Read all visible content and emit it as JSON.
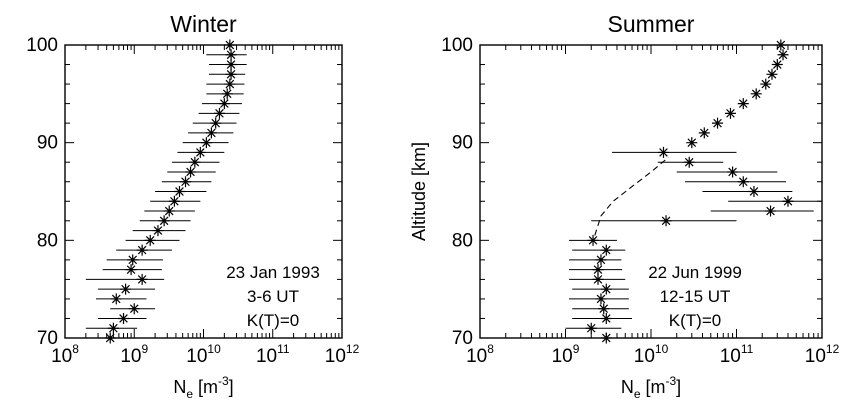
{
  "chart_data": [
    {
      "type": "scatter",
      "title": "Winter",
      "xlabel": {
        "base": "N",
        "sub": "e",
        "unit_pre": "[m",
        "unit_sup": "-3",
        "unit_post": "]"
      },
      "ylabel": "",
      "x_scale": "log",
      "xlim": [
        100000000.0,
        1000000000000.0
      ],
      "ylim": [
        70,
        100
      ],
      "x_ticks": [
        {
          "base": "10",
          "exp": "8"
        },
        {
          "base": "10",
          "exp": "9"
        },
        {
          "base": "10",
          "exp": "10"
        },
        {
          "base": "10",
          "exp": "11"
        },
        {
          "base": "10",
          "exp": "12"
        }
      ],
      "y_ticks": [
        "70",
        "80",
        "90",
        "100"
      ],
      "annotation": [
        "23 Jan 1993",
        "3-6 UT",
        "K(T)=0"
      ],
      "points": [
        {
          "y": 100.0,
          "x": 24000000000.0,
          "xmin": 10000000000.0,
          "xmax": 44000000000.0
        },
        {
          "y": 99.0,
          "x": 25000000000.0,
          "xmin": 11000000000.0,
          "xmax": 42000000000.0
        },
        {
          "y": 98.0,
          "x": 25000000000.0,
          "xmin": 12000000000.0,
          "xmax": 42000000000.0
        },
        {
          "y": 97.0,
          "x": 25000000000.0,
          "xmin": 12000000000.0,
          "xmax": 40000000000.0
        },
        {
          "y": 96.0,
          "x": 24000000000.0,
          "xmin": 11000000000.0,
          "xmax": 39000000000.0
        },
        {
          "y": 95.0,
          "x": 22000000000.0,
          "xmin": 11000000000.0,
          "xmax": 38000000000.0
        },
        {
          "y": 94.0,
          "x": 20000000000.0,
          "xmin": 9500000000.0,
          "xmax": 36000000000.0
        },
        {
          "y": 93.0,
          "x": 17000000000.0,
          "xmin": 8500000000.0,
          "xmax": 33000000000.0
        },
        {
          "y": 92.0,
          "x": 15000000000.0,
          "xmin": 7000000000.0,
          "xmax": 30000000000.0
        },
        {
          "y": 91.0,
          "x": 13000000000.0,
          "xmin": 6000000000.0,
          "xmax": 27000000000.0
        },
        {
          "y": 90.0,
          "x": 11000000000.0,
          "xmin": 5000000000.0,
          "xmax": 23000000000.0
        },
        {
          "y": 89.0,
          "x": 9000000000.0,
          "xmin": 4200000000.0,
          "xmax": 20000000000.0
        },
        {
          "y": 88.0,
          "x": 7500000000.0,
          "xmin": 3500000000.0,
          "xmax": 17000000000.0
        },
        {
          "y": 87.0,
          "x": 6500000000.0,
          "xmin": 3000000000.0,
          "xmax": 15000000000.0
        },
        {
          "y": 86.0,
          "x": 5500000000.0,
          "xmin": 2500000000.0,
          "xmax": 13000000000.0
        },
        {
          "y": 85.0,
          "x": 4500000000.0,
          "xmin": 2000000000.0,
          "xmax": 11000000000.0
        },
        {
          "y": 84.0,
          "x": 3800000000.0,
          "xmin": 1700000000.0,
          "xmax": 9000000000.0
        },
        {
          "y": 83.0,
          "x": 3200000000.0,
          "xmin": 1400000000.0,
          "xmax": 7500000000.0
        },
        {
          "y": 82.0,
          "x": 2700000000.0,
          "xmin": 1200000000.0,
          "xmax": 6500000000.0
        },
        {
          "y": 81.0,
          "x": 2200000000.0,
          "xmin": 950000000.0,
          "xmax": 5500000000.0
        },
        {
          "y": 80.0,
          "x": 1700000000.0,
          "xmin": 750000000.0,
          "xmax": 4500000000.0
        },
        {
          "y": 79.0,
          "x": 1300000000.0,
          "xmin": 550000000.0,
          "xmax": 3500000000.0
        },
        {
          "y": 78.0,
          "x": 950000000.0,
          "xmin": 400000000.0,
          "xmax": 2600000000.0
        },
        {
          "y": 77.0,
          "x": 900000000.0,
          "xmin": 350000000.0,
          "xmax": 2500000000.0
        },
        {
          "y": 76.0,
          "x": 1300000000.0,
          "xmin": 200000000.0,
          "xmax": 2700000000.0
        },
        {
          "y": 75.0,
          "x": 750000000.0,
          "xmin": 300000000.0,
          "xmax": 2000000000.0
        },
        {
          "y": 74.0,
          "x": 550000000.0,
          "xmin": 280000000.0,
          "xmax": 1500000000.0
        },
        {
          "y": 73.0,
          "x": 1000000000.0,
          "xmin": 450000000.0,
          "xmax": 2000000000.0
        },
        {
          "y": 72.0,
          "x": 700000000.0,
          "xmin": 300000000.0,
          "xmax": 1500000000.0
        },
        {
          "y": 71.0,
          "x": 500000000.0,
          "xmin": 200000000.0,
          "xmax": 1100000000.0
        },
        {
          "y": 70.0,
          "x": 450000000.0,
          "xmin": 200000000.0,
          "xmax": 900000000.0
        }
      ],
      "dashed_line": []
    },
    {
      "type": "scatter",
      "title": "Summer",
      "xlabel": {
        "base": "N",
        "sub": "e",
        "unit_pre": "[m",
        "unit_sup": "-3",
        "unit_post": "]"
      },
      "ylabel": "Altitude  [km]",
      "x_scale": "log",
      "xlim": [
        100000000.0,
        1000000000000.0
      ],
      "ylim": [
        70,
        100
      ],
      "x_ticks": [
        {
          "base": "10",
          "exp": "8"
        },
        {
          "base": "10",
          "exp": "9"
        },
        {
          "base": "10",
          "exp": "10"
        },
        {
          "base": "10",
          "exp": "11"
        },
        {
          "base": "10",
          "exp": "12"
        }
      ],
      "y_ticks": [
        "70",
        "80",
        "90",
        "100"
      ],
      "annotation": [
        "22 Jun 1999",
        "12-15 UT",
        "K(T)=0"
      ],
      "points": [
        {
          "y": 100.0,
          "x": 330000000000.0
        },
        {
          "y": 99.0,
          "x": 350000000000.0
        },
        {
          "y": 98.0,
          "x": 300000000000.0
        },
        {
          "y": 97.0,
          "x": 260000000000.0
        },
        {
          "y": 96.0,
          "x": 220000000000.0
        },
        {
          "y": 95.0,
          "x": 170000000000.0
        },
        {
          "y": 94.0,
          "x": 120000000000.0
        },
        {
          "y": 93.0,
          "x": 85000000000.0
        },
        {
          "y": 92.0,
          "x": 60000000000.0
        },
        {
          "y": 91.0,
          "x": 42000000000.0
        },
        {
          "y": 90.0,
          "x": 30000000000.0
        },
        {
          "y": 89.0,
          "x": 14000000000.0,
          "xmin": 3500000000.0,
          "xmax": 100000000000.0
        },
        {
          "y": 88.0,
          "x": 28000000000.0,
          "xmin": 12000000000.0,
          "xmax": 70000000000.0
        },
        {
          "y": 87.0,
          "x": 90000000000.0,
          "xmin": 20000000000.0,
          "xmax": 300000000000.0
        },
        {
          "y": 86.0,
          "x": 120000000000.0,
          "xmin": 25000000000.0,
          "xmax": 380000000000.0
        },
        {
          "y": 85.0,
          "x": 160000000000.0,
          "xmin": 40000000000.0,
          "xmax": 450000000000.0
        },
        {
          "y": 84.0,
          "x": 400000000000.0,
          "xmin": 80000000000.0,
          "xmax": 1000000000000.0
        },
        {
          "y": 83.0,
          "x": 250000000000.0,
          "xmin": 50000000000.0,
          "xmax": 800000000000.0
        },
        {
          "y": 82.0,
          "x": 15000000000.0,
          "xmin": 2000000000.0,
          "xmax": 100000000000.0
        },
        {
          "y": 80.0,
          "x": 2100000000.0,
          "xmin": 1100000000.0,
          "xmax": 4000000000.0
        },
        {
          "y": 79.0,
          "x": 3000000000.0,
          "xmin": 1200000000.0,
          "xmax": 5000000000.0
        },
        {
          "y": 78.0,
          "x": 2600000000.0,
          "xmin": 1100000000.0,
          "xmax": 4500000000.0
        },
        {
          "y": 77.0,
          "x": 2400000000.0,
          "xmin": 1100000000.0,
          "xmax": 4600000000.0
        },
        {
          "y": 76.0,
          "x": 2400000000.0,
          "xmin": 1100000000.0,
          "xmax": 5000000000.0
        },
        {
          "y": 75.0,
          "x": 3000000000.0,
          "xmin": 1200000000.0,
          "xmax": 5500000000.0
        },
        {
          "y": 74.0,
          "x": 2600000000.0,
          "xmin": 1100000000.0,
          "xmax": 5500000000.0
        },
        {
          "y": 73.0,
          "x": 2800000000.0,
          "xmin": 1200000000.0,
          "xmax": 5500000000.0
        },
        {
          "y": 72.0,
          "x": 3000000000.0,
          "xmin": 1200000000.0,
          "xmax": 6000000000.0
        },
        {
          "y": 71.0,
          "x": 2000000000.0,
          "xmin": 1000000000.0,
          "xmax": 4500000000.0
        },
        {
          "y": 70.0,
          "x": 3000000000.0,
          "xmin": 1300000000.0,
          "xmax": 5500000000.0
        }
      ],
      "dashed_line": [
        {
          "x": 2200000000.0,
          "y": 80.5
        },
        {
          "x": 2600000000.0,
          "y": 82.5
        },
        {
          "x": 3600000000.0,
          "y": 84.0
        },
        {
          "x": 6000000000.0,
          "y": 85.5
        },
        {
          "x": 10000000000.0,
          "y": 87.0
        },
        {
          "x": 16000000000.0,
          "y": 88.5
        }
      ]
    }
  ]
}
